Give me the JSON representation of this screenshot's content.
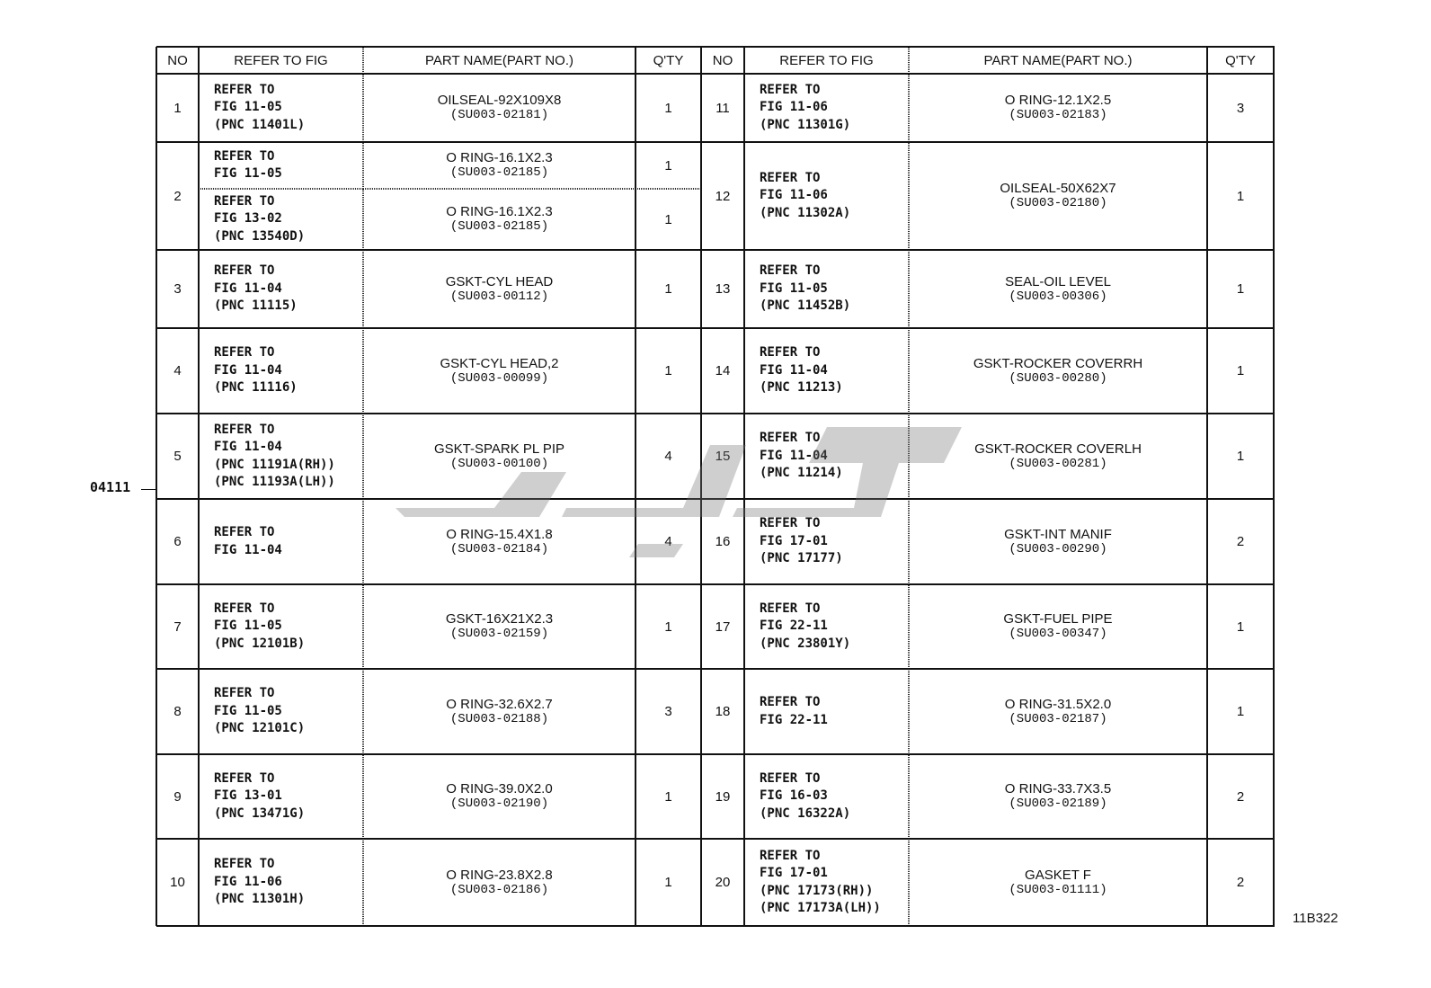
{
  "headers": [
    "NO",
    "REFER TO FIG",
    "PART NAME(PART NO.)",
    "Q'TY"
  ],
  "callout_label": "04111",
  "figure_code": "11B322",
  "watermark_icon": "brand-logo-watermark",
  "left": [
    {
      "no": "1",
      "entries": [
        {
          "refer": [
            "REFER TO",
            "FIG 11-05",
            "(PNC 11401L)"
          ],
          "part_name": "OILSEAL-92X109X8",
          "part_no": "(SU003-02181)",
          "qty": "1"
        }
      ]
    },
    {
      "no": "2",
      "entries": [
        {
          "refer": [
            "REFER TO",
            "FIG 11-05"
          ],
          "part_name": "O RING-16.1X2.3",
          "part_no": "(SU003-02185)",
          "qty": "1"
        },
        {
          "refer": [
            "REFER TO",
            "FIG 13-02",
            "(PNC 13540D)"
          ],
          "part_name": "O RING-16.1X2.3",
          "part_no": "(SU003-02185)",
          "qty": "1"
        }
      ]
    },
    {
      "no": "3",
      "entries": [
        {
          "refer": [
            "REFER TO",
            "FIG 11-04",
            "(PNC 11115)"
          ],
          "part_name": "GSKT-CYL HEAD",
          "part_no": "(SU003-00112)",
          "qty": "1"
        }
      ]
    },
    {
      "no": "4",
      "entries": [
        {
          "refer": [
            "REFER TO",
            "FIG 11-04",
            "(PNC 11116)"
          ],
          "part_name": "GSKT-CYL HEAD,2",
          "part_no": "(SU003-00099)",
          "qty": "1"
        }
      ]
    },
    {
      "no": "5",
      "entries": [
        {
          "refer": [
            "REFER TO",
            "FIG 11-04",
            "(PNC 11191A(RH))",
            "(PNC 11193A(LH))"
          ],
          "part_name": "GSKT-SPARK PL PIP",
          "part_no": "(SU003-00100)",
          "qty": "4"
        }
      ]
    },
    {
      "no": "6",
      "entries": [
        {
          "refer": [
            "REFER TO",
            "FIG 11-04"
          ],
          "part_name": "O RING-15.4X1.8",
          "part_no": "(SU003-02184)",
          "qty": "4"
        }
      ]
    },
    {
      "no": "7",
      "entries": [
        {
          "refer": [
            "REFER TO",
            "FIG 11-05",
            "(PNC 12101B)"
          ],
          "part_name": "GSKT-16X21X2.3",
          "part_no": "(SU003-02159)",
          "qty": "1"
        }
      ]
    },
    {
      "no": "8",
      "entries": [
        {
          "refer": [
            "REFER TO",
            "FIG 11-05",
            "(PNC 12101C)"
          ],
          "part_name": "O RING-32.6X2.7",
          "part_no": "(SU003-02188)",
          "qty": "3"
        }
      ]
    },
    {
      "no": "9",
      "entries": [
        {
          "refer": [
            "REFER TO",
            "FIG 13-01",
            "(PNC 13471G)"
          ],
          "part_name": "O RING-39.0X2.0",
          "part_no": "(SU003-02190)",
          "qty": "1"
        }
      ]
    },
    {
      "no": "10",
      "entries": [
        {
          "refer": [
            "REFER TO",
            "FIG 11-06",
            "(PNC 11301H)"
          ],
          "part_name": "O RING-23.8X2.8",
          "part_no": "(SU003-02186)",
          "qty": "1"
        }
      ]
    }
  ],
  "right": [
    {
      "no": "11",
      "entries": [
        {
          "refer": [
            "REFER TO",
            "FIG 11-06",
            "(PNC 11301G)"
          ],
          "part_name": "O RING-12.1X2.5",
          "part_no": "(SU003-02183)",
          "qty": "3"
        }
      ]
    },
    {
      "no": "12",
      "entries": [
        {
          "refer": [
            "REFER TO",
            "FIG 11-06",
            "(PNC 11302A)"
          ],
          "part_name": "OILSEAL-50X62X7",
          "part_no": "(SU003-02180)",
          "qty": "1"
        }
      ]
    },
    {
      "no": "13",
      "entries": [
        {
          "refer": [
            "REFER TO",
            "FIG 11-05",
            "(PNC 11452B)"
          ],
          "part_name": "SEAL-OIL LEVEL",
          "part_no": "(SU003-00306)",
          "qty": "1"
        }
      ]
    },
    {
      "no": "14",
      "entries": [
        {
          "refer": [
            "REFER TO",
            "FIG 11-04",
            "(PNC 11213)"
          ],
          "part_name": "GSKT-ROCKER COVERRH",
          "part_no": "(SU003-00280)",
          "qty": "1"
        }
      ]
    },
    {
      "no": "15",
      "entries": [
        {
          "refer": [
            "REFER TO",
            "FIG 11-04",
            "(PNC 11214)"
          ],
          "part_name": "GSKT-ROCKER COVERLH",
          "part_no": "(SU003-00281)",
          "qty": "1"
        }
      ]
    },
    {
      "no": "16",
      "entries": [
        {
          "refer": [
            "REFER TO",
            "FIG 17-01",
            "(PNC 17177)"
          ],
          "part_name": "GSKT-INT MANIF",
          "part_no": "(SU003-00290)",
          "qty": "2"
        }
      ]
    },
    {
      "no": "17",
      "entries": [
        {
          "refer": [
            "REFER TO",
            "FIG 22-11",
            "(PNC 23801Y)"
          ],
          "part_name": "GSKT-FUEL PIPE",
          "part_no": "(SU003-00347)",
          "qty": "1"
        }
      ]
    },
    {
      "no": "18",
      "entries": [
        {
          "refer": [
            "REFER TO",
            "FIG 22-11"
          ],
          "part_name": "O RING-31.5X2.0",
          "part_no": "(SU003-02187)",
          "qty": "1"
        }
      ]
    },
    {
      "no": "19",
      "entries": [
        {
          "refer": [
            "REFER TO",
            "FIG 16-03",
            "(PNC 16322A)"
          ],
          "part_name": "O RING-33.7X3.5",
          "part_no": "(SU003-02189)",
          "qty": "2"
        }
      ]
    },
    {
      "no": "20",
      "entries": [
        {
          "refer": [
            "REFER TO",
            "FIG 17-01",
            "(PNC 17173(RH))",
            "(PNC 17173A(LH))"
          ],
          "part_name": "GASKET F",
          "part_no": "(SU003-01111)",
          "qty": "2"
        }
      ]
    }
  ]
}
